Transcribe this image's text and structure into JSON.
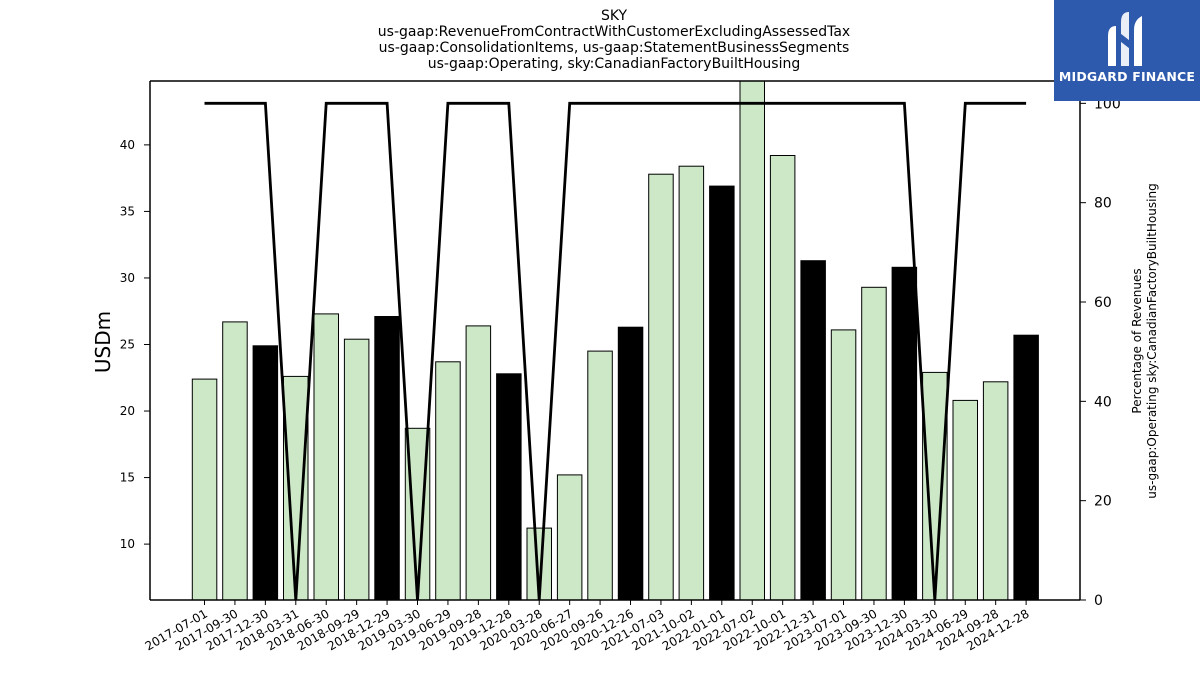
{
  "chart_data": {
    "type": "bar",
    "title_lines": [
      "SKY",
      "us-gaap:RevenueFromContractWithCustomerExcludingAssessedTax",
      "us-gaap:ConsolidationItems, us-gaap:StatementBusinessSegments",
      "us-gaap:Operating, sky:CanadianFactoryBuiltHousing"
    ],
    "ylabel": "USDm",
    "y2label_lines": [
      "Percentage of Revenues",
      "us-gaap:Operating sky:CanadianFactoryBuiltHousing"
    ],
    "ylim": [
      5.8,
      44.8
    ],
    "yticks": [
      10,
      15,
      20,
      25,
      30,
      35,
      40
    ],
    "y2lim": [
      0,
      104.5
    ],
    "y2ticks": [
      0,
      20,
      40,
      60,
      80,
      100
    ],
    "categories": [
      "2017-07-01",
      "2017-09-30",
      "2017-12-30",
      "2018-03-31",
      "2018-06-30",
      "2018-09-29",
      "2018-12-29",
      "2019-03-30",
      "2019-06-29",
      "2019-09-28",
      "2019-12-28",
      "2020-03-28",
      "2020-06-27",
      "2020-09-26",
      "2020-12-26",
      "2021-07-03",
      "2021-10-02",
      "2022-01-01",
      "2022-07-02",
      "2022-10-01",
      "2022-12-31",
      "2023-07-01",
      "2023-09-30",
      "2023-12-30",
      "2024-03-30",
      "2024-06-29",
      "2024-09-28",
      "2024-12-28"
    ],
    "series": [
      {
        "type": "bar",
        "values": [
          22.4,
          26.7,
          24.9,
          22.6,
          27.3,
          25.4,
          27.1,
          18.7,
          23.7,
          26.4,
          22.8,
          11.2,
          15.2,
          24.5,
          26.3,
          37.8,
          38.4,
          36.9,
          44.8,
          39.2,
          31.3,
          26.1,
          29.3,
          30.8,
          22.9,
          20.8,
          22.2,
          25.7
        ],
        "highlight": [
          false,
          false,
          true,
          false,
          false,
          false,
          true,
          false,
          false,
          false,
          true,
          false,
          false,
          false,
          true,
          false,
          false,
          true,
          false,
          false,
          true,
          false,
          false,
          true,
          false,
          false,
          false,
          true
        ]
      },
      {
        "type": "line",
        "axis": "right",
        "values": [
          100,
          100,
          100,
          0,
          100,
          100,
          100,
          0,
          100,
          100,
          100,
          0,
          100,
          100,
          100,
          100,
          100,
          100,
          100,
          100,
          100,
          100,
          100,
          100,
          0,
          100,
          100,
          100
        ]
      }
    ],
    "colors": {
      "bar_fill": "#cce8c7",
      "bar_highlight": "#000000",
      "bar_edge": "#000000",
      "line": "#000000"
    },
    "grid": false,
    "legend": "none"
  },
  "logo": {
    "text": "MIDGARD FINANCE",
    "bg": "#2d5aad"
  }
}
